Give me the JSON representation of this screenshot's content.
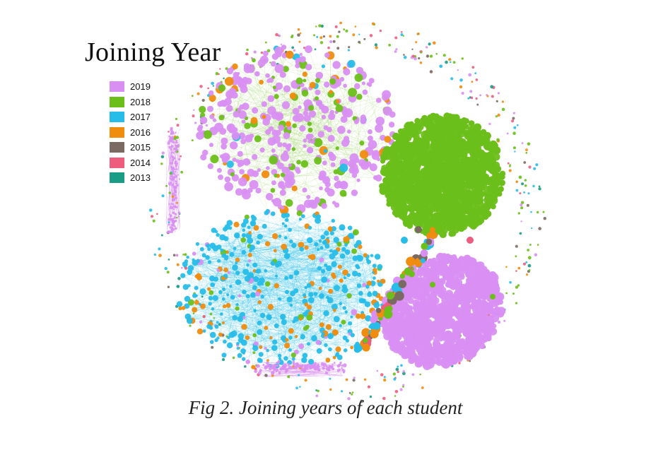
{
  "figure": {
    "legend_title": "Joining Year",
    "caption": "Fig 2. Joining years of each student"
  },
  "legend": {
    "items": [
      {
        "label": "2019",
        "color": "#d98ff2"
      },
      {
        "label": "2018",
        "color": "#6cbf1a"
      },
      {
        "label": "2017",
        "color": "#27bde8"
      },
      {
        "label": "2016",
        "color": "#f08c0e"
      },
      {
        "label": "2015",
        "color": "#7a6a62"
      },
      {
        "label": "2014",
        "color": "#ee5c7e"
      },
      {
        "label": "2013",
        "color": "#1a9c85"
      }
    ]
  }
}
